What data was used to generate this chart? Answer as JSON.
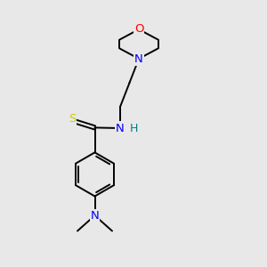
{
  "background_color": "#e8e8e8",
  "atom_colors": {
    "O": "#ff0000",
    "N": "#0000ff",
    "S": "#cccc00",
    "C": "#000000",
    "H": "#008080"
  },
  "bond_color": "#000000",
  "bond_width": 1.4,
  "font_size_atoms": 9.5,
  "font_size_H": 9,
  "figsize": [
    3.0,
    3.0
  ],
  "dpi": 100,
  "xlim": [
    0,
    10
  ],
  "ylim": [
    0,
    10
  ]
}
